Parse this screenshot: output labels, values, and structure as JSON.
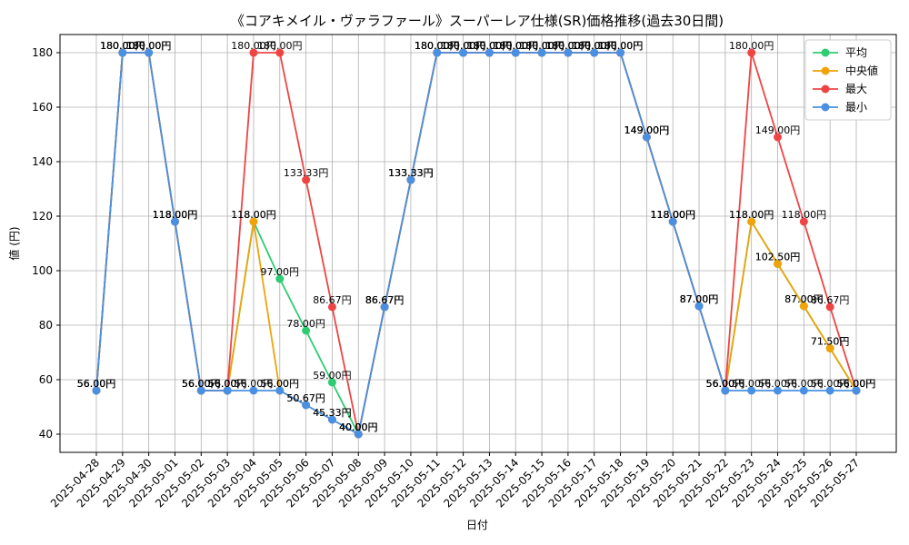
{
  "chart_data": {
    "type": "line",
    "title": "《コアキメイル・ヴァラファール》スーパーレア仕様(SR)価格推移(過去30日間)",
    "xlabel": "日付",
    "ylabel": "値 (円)",
    "ylim": [
      33.33,
      186.67
    ],
    "yticks": [
      40,
      60,
      80,
      100,
      120,
      140,
      160,
      180
    ],
    "grid": true,
    "legend_position": "top-right",
    "unit_suffix": "円",
    "categories": [
      "2025-04-28",
      "2025-04-29",
      "2025-04-30",
      "2025-05-01",
      "2025-05-02",
      "2025-05-03",
      "2025-05-04",
      "2025-05-05",
      "2025-05-06",
      "2025-05-07",
      "2025-05-08",
      "2025-05-09",
      "2025-05-10",
      "2025-05-11",
      "2025-05-12",
      "2025-05-13",
      "2025-05-14",
      "2025-05-15",
      "2025-05-16",
      "2025-05-17",
      "2025-05-18",
      "2025-05-19",
      "2025-05-20",
      "2025-05-21",
      "2025-05-22",
      "2025-05-23",
      "2025-05-24",
      "2025-05-25",
      "2025-05-26",
      "2025-05-27"
    ],
    "series": [
      {
        "name": "平均",
        "color": "#2ecc71",
        "values": [
          56,
          180,
          180,
          118,
          56,
          56,
          118,
          97,
          78,
          59,
          40,
          86.67,
          133.33,
          180,
          180,
          180,
          180,
          180,
          180,
          180,
          180,
          149,
          118,
          87,
          56,
          118,
          102.5,
          87,
          71.5,
          56
        ]
      },
      {
        "name": "中央値",
        "color": "#f0a30a",
        "values": [
          56,
          180,
          180,
          118,
          56,
          56,
          118,
          56,
          50.67,
          45.33,
          40,
          86.67,
          133.33,
          180,
          180,
          180,
          180,
          180,
          180,
          180,
          180,
          149,
          118,
          87,
          56,
          118,
          102.5,
          87,
          71.5,
          56
        ]
      },
      {
        "name": "最大",
        "color": "#ef4444",
        "values": [
          56,
          180,
          180,
          118,
          56,
          56,
          180,
          180,
          133.33,
          86.67,
          40,
          86.67,
          133.33,
          180,
          180,
          180,
          180,
          180,
          180,
          180,
          180,
          149,
          118,
          87,
          56,
          180,
          149,
          118,
          86.67,
          56
        ]
      },
      {
        "name": "最小",
        "color": "#4a90e2",
        "values": [
          56,
          180,
          180,
          118,
          56,
          56,
          56,
          56,
          50.67,
          45.33,
          40,
          86.67,
          133.33,
          180,
          180,
          180,
          180,
          180,
          180,
          180,
          180,
          149,
          118,
          87,
          56,
          56,
          56,
          56,
          56,
          56
        ]
      }
    ]
  }
}
